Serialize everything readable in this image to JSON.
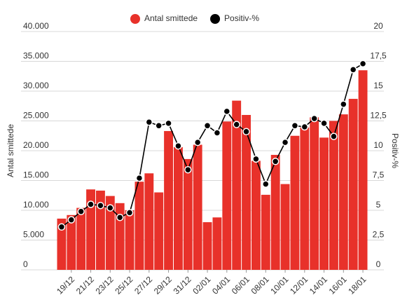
{
  "chart_data": {
    "type": "combo",
    "categories": [
      null,
      "19/12",
      null,
      "21/12",
      null,
      "23/12",
      null,
      "25/12",
      null,
      "27/12",
      null,
      "29/12",
      null,
      "31/12",
      null,
      "02/01",
      null,
      "04/01",
      null,
      "06/01",
      null,
      "08/01",
      null,
      "10/01",
      null,
      "12/01",
      null,
      "14/01",
      null,
      "16/01",
      null,
      "18/01"
    ],
    "series": [
      {
        "name": "Antal smittede",
        "type": "bar",
        "color": "#e8312a",
        "axis": "y",
        "values": [
          8600,
          9200,
          10400,
          13500,
          13300,
          12400,
          11200,
          10000,
          14800,
          16200,
          13000,
          23300,
          20600,
          18600,
          21000,
          8000,
          8800,
          24900,
          28400,
          26000,
          18300,
          12600,
          19300,
          14400,
          22500,
          23900,
          25600,
          22200,
          25000,
          26100,
          28700,
          33500
        ]
      },
      {
        "name": "Positiv-%",
        "type": "line",
        "color": "#000000",
        "axis": "y2",
        "values": [
          3.6,
          4.2,
          4.9,
          5.5,
          5.4,
          5.2,
          4.4,
          4.8,
          7.7,
          12.4,
          12.1,
          12.3,
          10.4,
          8.4,
          10.7,
          12.1,
          11.5,
          13.3,
          12.2,
          11.6,
          9.3,
          7.2,
          9.1,
          10.7,
          12.1,
          12.0,
          12.7,
          12.3,
          11.2,
          13.9,
          16.8,
          17.3
        ]
      }
    ],
    "ylabel": "Antal smittede",
    "y2label": "Positiv-%",
    "ylim": [
      0,
      40000
    ],
    "yticks": [
      0,
      {
        "value": 5000,
        "label": "5.000"
      },
      {
        "value": 10000,
        "label": "10.000"
      },
      {
        "value": 15000,
        "label": "15.000"
      },
      {
        "value": 20000,
        "label": "20.000"
      },
      {
        "value": 25000,
        "label": "25.000"
      },
      {
        "value": 30000,
        "label": "30.000"
      },
      {
        "value": 35000,
        "label": "35.000"
      },
      {
        "value": 40000,
        "label": "40.000"
      }
    ],
    "y2lim": [
      0,
      20
    ],
    "y2ticks": [
      0,
      {
        "value": 2.5,
        "label": "2,5"
      },
      5,
      {
        "value": 7.5,
        "label": "7,5"
      },
      10,
      {
        "value": 12.5,
        "label": "12,5"
      },
      15,
      {
        "value": 17.5,
        "label": "17,5"
      },
      20
    ],
    "grid": true,
    "legend": "top"
  }
}
